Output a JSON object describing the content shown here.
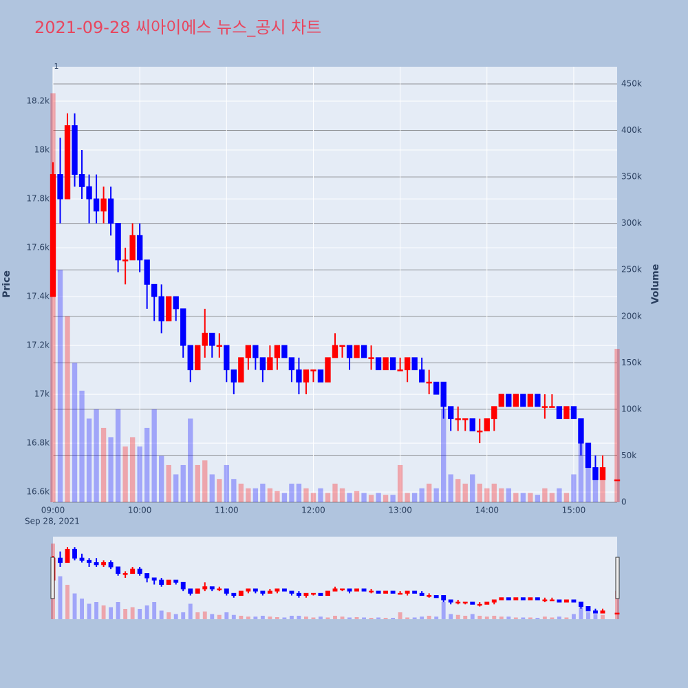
{
  "chart_data": {
    "type": "candlestick",
    "title": "2021-09-28 씨아이에스 뉴스_공시 차트",
    "y_label": "Price",
    "y2_label": "Volume",
    "x_date_label": "Sep 28, 2021",
    "annotation": "1",
    "increasing_color": "#ff0000",
    "decreasing_color": "#0000ff",
    "x": [
      "09:00",
      "09:05",
      "09:10",
      "09:15",
      "09:20",
      "09:25",
      "09:30",
      "09:35",
      "09:40",
      "09:45",
      "09:50",
      "09:55",
      "10:00",
      "10:05",
      "10:10",
      "10:15",
      "10:20",
      "10:25",
      "10:30",
      "10:35",
      "10:40",
      "10:45",
      "10:50",
      "10:55",
      "11:00",
      "11:05",
      "11:10",
      "11:15",
      "11:20",
      "11:25",
      "11:30",
      "11:35",
      "11:40",
      "11:45",
      "11:50",
      "11:55",
      "12:00",
      "12:05",
      "12:10",
      "12:15",
      "12:20",
      "12:25",
      "12:30",
      "12:35",
      "12:40",
      "12:45",
      "12:50",
      "12:55",
      "13:00",
      "13:05",
      "13:10",
      "13:15",
      "13:20",
      "13:25",
      "13:30",
      "13:35",
      "13:40",
      "13:45",
      "13:50",
      "13:55",
      "14:00",
      "14:05",
      "14:10",
      "14:15",
      "14:20",
      "14:25",
      "14:30",
      "14:35",
      "14:40",
      "14:45",
      "14:50",
      "14:55",
      "15:00",
      "15:05",
      "15:10",
      "15:15",
      "15:20",
      "15:30"
    ],
    "open": [
      17400,
      17900,
      17800,
      18100,
      17900,
      17850,
      17800,
      17750,
      17800,
      17700,
      17550,
      17550,
      17650,
      17550,
      17450,
      17400,
      17300,
      17400,
      17350,
      17200,
      17100,
      17200,
      17250,
      17200,
      17200,
      17100,
      17050,
      17150,
      17200,
      17150,
      17100,
      17150,
      17200,
      17150,
      17100,
      17050,
      17100,
      17100,
      17050,
      17150,
      17200,
      17200,
      17150,
      17200,
      17150,
      17150,
      17100,
      17150,
      17100,
      17100,
      17150,
      17100,
      17050,
      17050,
      17050,
      16950,
      16900,
      16900,
      16900,
      16850,
      16850,
      16900,
      16950,
      17000,
      16950,
      17000,
      16950,
      17000,
      16950,
      16950,
      16950,
      16900,
      16950,
      16900,
      16800,
      16700,
      16650,
      16650
    ],
    "high": [
      17950,
      18050,
      18150,
      18150,
      18000,
      17900,
      17900,
      17850,
      17850,
      17700,
      17600,
      17700,
      17700,
      17550,
      17450,
      17450,
      17400,
      17400,
      17350,
      17200,
      17200,
      17350,
      17250,
      17250,
      17200,
      17100,
      17150,
      17200,
      17200,
      17150,
      17200,
      17200,
      17200,
      17150,
      17150,
      17100,
      17100,
      17100,
      17150,
      17250,
      17200,
      17200,
      17200,
      17200,
      17200,
      17150,
      17150,
      17150,
      17150,
      17150,
      17150,
      17150,
      17100,
      17050,
      17050,
      16950,
      16950,
      16900,
      16900,
      16900,
      16900,
      16950,
      17000,
      17000,
      17000,
      17000,
      17000,
      17000,
      17000,
      17000,
      16950,
      16950,
      16950,
      16900,
      16800,
      16750,
      16750,
      16650
    ],
    "low": [
      17400,
      17700,
      17800,
      17850,
      17800,
      17700,
      17700,
      17700,
      17650,
      17500,
      17450,
      17550,
      17500,
      17350,
      17300,
      17250,
      17300,
      17300,
      17150,
      17050,
      17100,
      17150,
      17150,
      17150,
      17050,
      17000,
      17050,
      17100,
      17100,
      17050,
      17100,
      17100,
      17150,
      17050,
      17000,
      17000,
      17050,
      17050,
      17050,
      17150,
      17150,
      17100,
      17150,
      17150,
      17100,
      17100,
      17100,
      17100,
      17100,
      17050,
      17100,
      17050,
      17000,
      17000,
      16900,
      16850,
      16850,
      16850,
      16850,
      16800,
      16850,
      16850,
      16950,
      16950,
      16950,
      16950,
      16950,
      16950,
      16900,
      16950,
      16900,
      16900,
      16900,
      16750,
      16700,
      16650,
      16650,
      16650
    ],
    "close": [
      17900,
      17800,
      18100,
      17900,
      17850,
      17800,
      17750,
      17800,
      17700,
      17550,
      17550,
      17650,
      17550,
      17450,
      17400,
      17300,
      17400,
      17350,
      17200,
      17100,
      17200,
      17250,
      17200,
      17200,
      17100,
      17050,
      17150,
      17200,
      17150,
      17100,
      17150,
      17200,
      17150,
      17100,
      17050,
      17100,
      17100,
      17050,
      17150,
      17200,
      17200,
      17150,
      17200,
      17150,
      17150,
      17100,
      17150,
      17100,
      17100,
      17150,
      17100,
      17050,
      17050,
      17000,
      16950,
      16900,
      16900,
      16900,
      16850,
      16850,
      16900,
      16950,
      17000,
      16950,
      17000,
      16950,
      17000,
      16950,
      16950,
      16950,
      16900,
      16950,
      16900,
      16800,
      16700,
      16650,
      16700,
      16650
    ],
    "volume": [
      440000,
      250000,
      200000,
      150000,
      120000,
      90000,
      100000,
      80000,
      70000,
      100000,
      60000,
      70000,
      60000,
      80000,
      100000,
      50000,
      40000,
      30000,
      40000,
      90000,
      40000,
      45000,
      30000,
      25000,
      40000,
      25000,
      20000,
      15000,
      15000,
      20000,
      15000,
      12000,
      10000,
      20000,
      20000,
      15000,
      10000,
      15000,
      10000,
      20000,
      15000,
      10000,
      12000,
      10000,
      8000,
      10000,
      8000,
      8000,
      40000,
      10000,
      10000,
      15000,
      20000,
      15000,
      100000,
      30000,
      25000,
      20000,
      30000,
      20000,
      15000,
      20000,
      15000,
      15000,
      10000,
      10000,
      10000,
      8000,
      15000,
      10000,
      15000,
      10000,
      30000,
      70000,
      40000,
      30000,
      25000,
      165000
    ],
    "xlim": [
      "09:00",
      "15:30"
    ],
    "xticks": [
      "09:00",
      "10:00",
      "11:00",
      "12:00",
      "13:00",
      "14:00",
      "15:00"
    ],
    "ylim": [
      16558,
      18341
    ],
    "yticks": [
      {
        "value": 16600,
        "label": "16.6k"
      },
      {
        "value": 16800,
        "label": "16.8k"
      },
      {
        "value": 17000,
        "label": "17k"
      },
      {
        "value": 17200,
        "label": "17.2k"
      },
      {
        "value": 17400,
        "label": "17.4k"
      },
      {
        "value": 17600,
        "label": "17.6k"
      },
      {
        "value": 17800,
        "label": "17.8k"
      },
      {
        "value": 18000,
        "label": "18k"
      },
      {
        "value": 18200,
        "label": "18.2k"
      }
    ],
    "y2lim": [
      0,
      468500
    ],
    "y2ticks": [
      0,
      {
        "value": 50000,
        "label": "50k"
      },
      {
        "value": 100000,
        "label": "100k"
      },
      {
        "value": 150000,
        "label": "150k"
      },
      {
        "value": 200000,
        "label": "200k"
      },
      {
        "value": 250000,
        "label": "250k"
      },
      {
        "value": 300000,
        "label": "300k"
      },
      {
        "value": 350000,
        "label": "350k"
      },
      {
        "value": 400000,
        "label": "400k"
      },
      {
        "value": 450000,
        "label": "450k"
      }
    ]
  }
}
